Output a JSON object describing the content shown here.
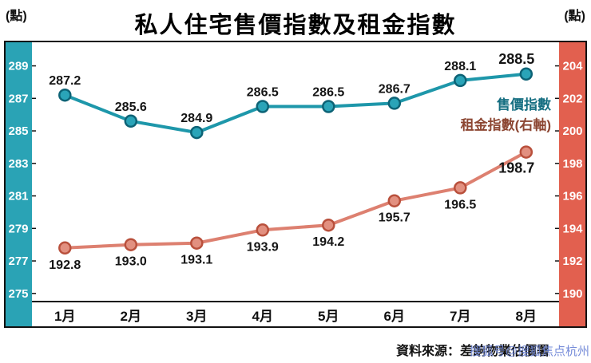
{
  "header": {
    "unit_left": "(點)",
    "title": "私人住宅售價指數及租金指數",
    "unit_right": "(點)"
  },
  "chart_data": {
    "type": "line",
    "title": "私人住宅售價指數及租金指數",
    "categories": [
      "1月",
      "2月",
      "3月",
      "4月",
      "5月",
      "6月",
      "7月",
      "8月"
    ],
    "series": [
      {
        "id": "sale-price-line",
        "name": "售價指數",
        "axis": "left",
        "color": "#1e97aa",
        "marker_fill": "#2aa4b8",
        "marker_stroke": "#0d6376",
        "label_side": "above",
        "values": [
          287.2,
          285.6,
          284.9,
          286.5,
          286.5,
          286.7,
          288.1,
          288.5
        ]
      },
      {
        "id": "rental-line",
        "name": "租金指數(右軸)",
        "axis": "right",
        "color": "#dd8070",
        "marker_fill": "#e29080",
        "marker_stroke": "#b9503c",
        "label_side": "below",
        "values": [
          192.8,
          193.0,
          193.1,
          193.9,
          194.2,
          195.7,
          196.5,
          198.7
        ]
      }
    ],
    "left_axis": {
      "label": "(點)",
      "ticks": [
        289,
        287,
        285,
        283,
        281,
        279,
        277,
        275
      ],
      "min": 274.5,
      "max": 290.5,
      "strip_color": "#2aa3b5"
    },
    "right_axis": {
      "label": "(點)",
      "ticks": [
        204,
        202,
        200,
        198,
        196,
        194,
        192,
        190
      ],
      "min": 189.5,
      "max": 205.5,
      "strip_color": "#e2604f"
    },
    "legend_labels": [
      {
        "text": "售價指數",
        "color": "#156e81",
        "series": 0
      },
      {
        "text": "租金指數(右軸)",
        "color": "#8c4632",
        "series": 1
      }
    ],
    "grid": false,
    "legend_position": "right-inline"
  },
  "footer": {
    "source": "資料來源：差餉物業估價署",
    "watermark": "搜狐号@搜狐焦点杭州"
  }
}
